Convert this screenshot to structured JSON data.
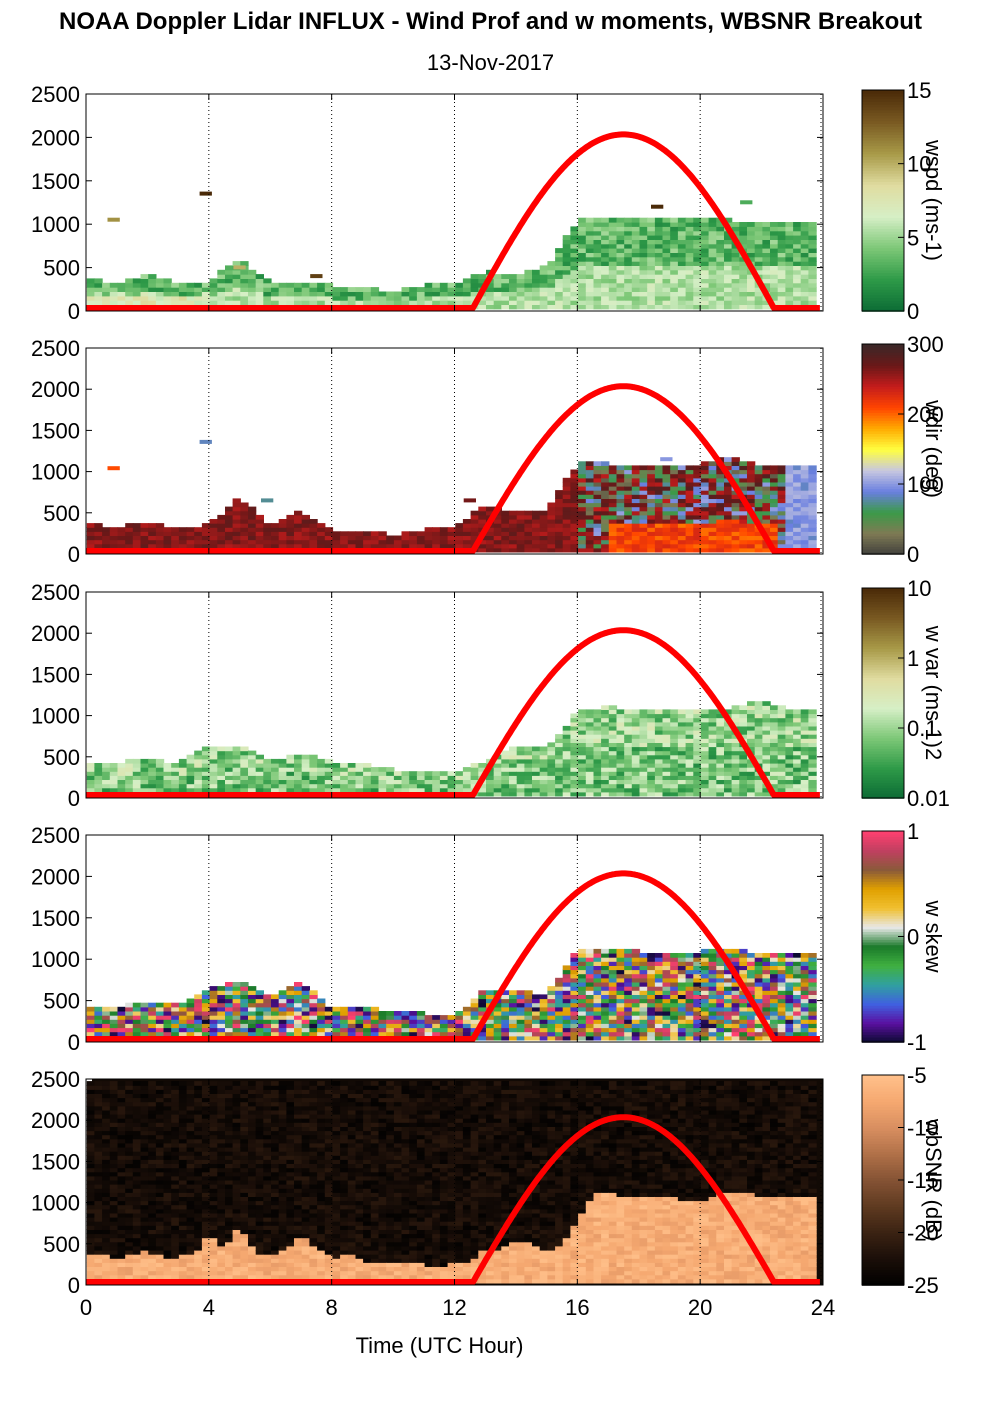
{
  "title": "NOAA Doppler Lidar INFLUX - Wind Prof and w moments, WBSNR Breakout",
  "subtitle": "13-Nov-2017",
  "colors": {
    "daylight_curve": "#ff0000",
    "gridline": "#000000"
  },
  "chart_data": [
    {
      "type": "heatmap",
      "panel": "wspd",
      "xlabel": "",
      "ylabel": "",
      "xlim": [
        0,
        24
      ],
      "ylim": [
        0,
        2500
      ],
      "x_ticks": [
        0,
        4,
        8,
        12,
        16,
        20,
        24
      ],
      "y_ticks": [
        0,
        500,
        1000,
        1500,
        2000,
        2500
      ],
      "grid": "vertical dotted at x ticks",
      "colorbar": {
        "label": "wspd (ms-1)",
        "range": [
          0,
          15
        ],
        "ticks": [
          "0",
          "5",
          "10",
          "15"
        ],
        "colors": [
          "#0b6b35",
          "#2e9a48",
          "#7cc776",
          "#d6efc6",
          "#e0dca0",
          "#a89a48",
          "#7a5a22",
          "#4a2a08"
        ]
      },
      "echo_top_m": [
        [
          0,
          380
        ],
        [
          1,
          330
        ],
        [
          2,
          420
        ],
        [
          3,
          320
        ],
        [
          4,
          350
        ],
        [
          5,
          600
        ],
        [
          6,
          330
        ],
        [
          7,
          350
        ],
        [
          8,
          300
        ],
        [
          9,
          260
        ],
        [
          10,
          240
        ],
        [
          11,
          300
        ],
        [
          12,
          330
        ],
        [
          13,
          460
        ],
        [
          14,
          420
        ],
        [
          15,
          520
        ],
        [
          16,
          1050
        ],
        [
          17,
          1100
        ],
        [
          18,
          1080
        ],
        [
          19,
          1050
        ],
        [
          20,
          1050
        ],
        [
          21,
          1050
        ],
        [
          22,
          1040
        ],
        [
          23,
          1040
        ],
        [
          23.9,
          1040
        ]
      ],
      "isolated_values": [
        {
          "t": 0.9,
          "z": 1050,
          "v": 11
        },
        {
          "t": 3.9,
          "z": 1350,
          "v": 15
        },
        {
          "t": 5.0,
          "z": 500,
          "v": 10
        },
        {
          "t": 7.5,
          "z": 400,
          "v": 14
        },
        {
          "t": 18.6,
          "z": 1200,
          "v": 15
        },
        {
          "t": 21.5,
          "z": 1250,
          "v": 3
        }
      ]
    },
    {
      "type": "heatmap",
      "panel": "wdir",
      "xlabel": "",
      "ylabel": "",
      "xlim": [
        0,
        24
      ],
      "ylim": [
        0,
        2500
      ],
      "x_ticks": [
        0,
        4,
        8,
        12,
        16,
        20,
        24
      ],
      "y_ticks": [
        0,
        500,
        1000,
        1500,
        2000,
        2500
      ],
      "grid": "vertical dotted at x ticks",
      "colorbar": {
        "label": "wdir (deg)",
        "range": [
          0,
          360
        ],
        "ticks": [
          "0",
          "100",
          "200",
          "300"
        ],
        "colors": [
          "#40403c",
          "#7f7a54",
          "#3b9a48",
          "#6a7fe0",
          "#c8c8e0",
          "#ffff40",
          "#ffaa00",
          "#ff4400",
          "#c41c1c",
          "#6a1818",
          "#3a2828"
        ]
      },
      "echo_top_m": [
        [
          0,
          360
        ],
        [
          1,
          340
        ],
        [
          2,
          400
        ],
        [
          3,
          320
        ],
        [
          4,
          360
        ],
        [
          5,
          700
        ],
        [
          6,
          330
        ],
        [
          7,
          520
        ],
        [
          8,
          300
        ],
        [
          9,
          270
        ],
        [
          10,
          240
        ],
        [
          11,
          300
        ],
        [
          12,
          340
        ],
        [
          13,
          600
        ],
        [
          14,
          500
        ],
        [
          15,
          540
        ],
        [
          16,
          1100
        ],
        [
          17,
          1100
        ],
        [
          18,
          1050
        ],
        [
          19,
          1050
        ],
        [
          20,
          1100
        ],
        [
          21,
          1200
        ],
        [
          22,
          1050
        ],
        [
          23,
          1050
        ],
        [
          23.9,
          1050
        ]
      ],
      "isolated_values": [
        {
          "t": 0.9,
          "z": 1040,
          "v": 250
        },
        {
          "t": 3.9,
          "z": 1360,
          "v": 100
        },
        {
          "t": 5.9,
          "z": 650,
          "v": 90
        },
        {
          "t": 12.5,
          "z": 650,
          "v": 320
        },
        {
          "t": 18.9,
          "z": 1150,
          "v": 120
        }
      ]
    },
    {
      "type": "heatmap",
      "panel": "w var",
      "xlabel": "",
      "ylabel": "",
      "xlim": [
        0,
        24
      ],
      "ylim": [
        0,
        2500
      ],
      "x_ticks": [
        0,
        4,
        8,
        12,
        16,
        20,
        24
      ],
      "y_ticks": [
        0,
        500,
        1000,
        1500,
        2000,
        2500
      ],
      "grid": "vertical dotted at x ticks",
      "colorbar": {
        "label": "w var (ms-1)2",
        "scale": "log",
        "range": [
          0.01,
          10
        ],
        "ticks": [
          "0.01",
          "0.1",
          "1",
          "10"
        ],
        "colors": [
          "#0b6b35",
          "#2e9a48",
          "#7cc776",
          "#d6efc6",
          "#e0dca0",
          "#a89a48",
          "#7a5a22",
          "#4a2a08"
        ]
      },
      "echo_top_m": [
        [
          0,
          430
        ],
        [
          1,
          430
        ],
        [
          2,
          500
        ],
        [
          3,
          420
        ],
        [
          4,
          620
        ],
        [
          5,
          650
        ],
        [
          6,
          450
        ],
        [
          7,
          560
        ],
        [
          8,
          450
        ],
        [
          9,
          420
        ],
        [
          10,
          350
        ],
        [
          11,
          300
        ],
        [
          12,
          320
        ],
        [
          13,
          460
        ],
        [
          14,
          640
        ],
        [
          15,
          600
        ],
        [
          16,
          1050
        ],
        [
          17,
          1120
        ],
        [
          18,
          1060
        ],
        [
          19,
          1050
        ],
        [
          20,
          1080
        ],
        [
          21,
          1100
        ],
        [
          22,
          1200
        ],
        [
          23,
          1050
        ],
        [
          23.9,
          1050
        ]
      ],
      "isolated_values": []
    },
    {
      "type": "heatmap",
      "panel": "w skew",
      "xlabel": "",
      "ylabel": "",
      "xlim": [
        0,
        24
      ],
      "ylim": [
        0,
        2500
      ],
      "x_ticks": [
        0,
        4,
        8,
        12,
        16,
        20,
        24
      ],
      "y_ticks": [
        0,
        500,
        1000,
        1500,
        2000,
        2500
      ],
      "grid": "vertical dotted at x ticks",
      "colorbar": {
        "label": "w skew",
        "range": [
          -1,
          1
        ],
        "ticks": [
          "-1",
          "0",
          "1"
        ],
        "colors": [
          "#0a0a30",
          "#5a10a0",
          "#4060e0",
          "#30a0a0",
          "#40b040",
          "#1a7a2a",
          "#e8e8e8",
          "#f0c030",
          "#e0a000",
          "#8a5a3a",
          "#c04060",
          "#ff4070"
        ]
      },
      "echo_top_m": [
        [
          0,
          420
        ],
        [
          1,
          440
        ],
        [
          2,
          500
        ],
        [
          3,
          450
        ],
        [
          4,
          640
        ],
        [
          5,
          750
        ],
        [
          6,
          530
        ],
        [
          7,
          750
        ],
        [
          8,
          400
        ],
        [
          9,
          420
        ],
        [
          10,
          380
        ],
        [
          11,
          350
        ],
        [
          12,
          320
        ],
        [
          13,
          640
        ],
        [
          14,
          620
        ],
        [
          15,
          580
        ],
        [
          16,
          1120
        ],
        [
          17,
          1150
        ],
        [
          18,
          1100
        ],
        [
          19,
          1080
        ],
        [
          20,
          1100
        ],
        [
          21,
          1150
        ],
        [
          22,
          1060
        ],
        [
          23,
          1050
        ],
        [
          23.9,
          1050
        ]
      ],
      "isolated_values": []
    },
    {
      "type": "heatmap",
      "panel": "WBSNR",
      "xlabel": "Time (UTC Hour)",
      "ylabel": "",
      "xlim": [
        0,
        24
      ],
      "ylim": [
        0,
        2500
      ],
      "x_ticks": [
        0,
        4,
        8,
        12,
        16,
        20,
        24
      ],
      "y_ticks": [
        0,
        500,
        1000,
        1500,
        2000,
        2500
      ],
      "grid": "vertical dotted at x ticks",
      "colorbar": {
        "label": "wbSNR (dB)",
        "range": [
          -25,
          -5
        ],
        "ticks": [
          "-25",
          "-20",
          "-15",
          "-10",
          "-5"
        ],
        "colors": [
          "#000000",
          "#1a0e08",
          "#3a2212",
          "#5e3a20",
          "#845234",
          "#b07048",
          "#d88e60",
          "#f5a870",
          "#ffc08a"
        ]
      },
      "echo_top_m": [
        [
          0,
          380
        ],
        [
          0.5,
          400
        ],
        [
          1,
          320
        ],
        [
          1.5,
          380
        ],
        [
          2,
          420
        ],
        [
          2.5,
          350
        ],
        [
          3,
          340
        ],
        [
          3.5,
          380
        ],
        [
          4,
          600
        ],
        [
          4.5,
          450
        ],
        [
          5,
          700
        ],
        [
          5.5,
          400
        ],
        [
          6,
          380
        ],
        [
          6.5,
          420
        ],
        [
          7,
          600
        ],
        [
          7.5,
          450
        ],
        [
          8,
          330
        ],
        [
          8.5,
          380
        ],
        [
          9,
          300
        ],
        [
          9.5,
          280
        ],
        [
          10,
          250
        ],
        [
          10.5,
          260
        ],
        [
          11,
          250
        ],
        [
          11.5,
          240
        ],
        [
          12,
          260
        ],
        [
          12.5,
          300
        ],
        [
          13,
          450
        ],
        [
          13.5,
          420
        ],
        [
          14,
          520
        ],
        [
          14.5,
          500
        ],
        [
          15,
          420
        ],
        [
          15.5,
          460
        ],
        [
          16,
          800
        ],
        [
          16.5,
          1100
        ],
        [
          17,
          1120
        ],
        [
          17.5,
          1080
        ],
        [
          18,
          1060
        ],
        [
          18.5,
          1050
        ],
        [
          19,
          1060
        ],
        [
          19.5,
          1040
        ],
        [
          20,
          1000
        ],
        [
          20.5,
          1100
        ],
        [
          21,
          1100
        ],
        [
          21.5,
          1150
        ],
        [
          22,
          1060
        ],
        [
          22.5,
          1060
        ],
        [
          23,
          1080
        ],
        [
          23.5,
          1060
        ],
        [
          23.9,
          1060
        ]
      ],
      "isolated_values": []
    }
  ],
  "daylight_curve": {
    "description": "solar daylight indicator, repeated in every panel",
    "sunrise_utc_hr": 12.6,
    "sunset_utc_hr": 22.4,
    "peak_utc_hr": 17.5,
    "peak_value_m": 2000,
    "baseline_value_m": 0
  }
}
